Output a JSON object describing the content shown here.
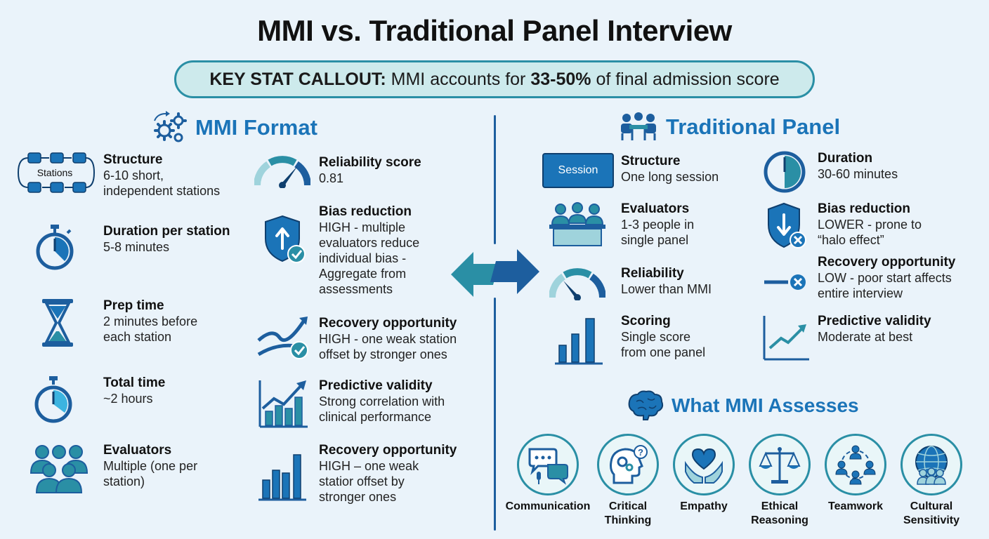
{
  "title": "MMI vs. Traditional Panel Interview",
  "callout": {
    "prefix": "KEY STAT CALLOUT:",
    "text1": " MMI accounts for ",
    "stat": "33-50%",
    "text2": " of final admission score"
  },
  "mmi": {
    "heading": "MMI Format",
    "stations_icon_label": "Stations",
    "left_items": [
      {
        "label": "Structure",
        "value": "6-10 short,\nindependent stations",
        "icon": "stations-flow-icon"
      },
      {
        "label": "Duration per station",
        "value": "5-8 minutes",
        "icon": "stopwatch-icon"
      },
      {
        "label": "Prep time",
        "value": "2 minutes before\neach station",
        "icon": "hourglass-icon"
      },
      {
        "label": "Total time",
        "value": "~2 hours",
        "icon": "stopwatch-icon"
      },
      {
        "label": "Evaluators",
        "value": "Multiple (one per\nstation)",
        "icon": "group-icon"
      }
    ],
    "right_items": [
      {
        "label": "Reliability score",
        "value": "0.81",
        "icon": "gauge-icon"
      },
      {
        "label": "Bias reduction",
        "value": "HIGH - multiple\nevaluators reduce\nindividual bias -\nAggregate from\nassessments",
        "icon": "shield-up-check-icon"
      },
      {
        "label": "Recovery opportunity",
        "value": "HIGH - one weak station\noffset by stronger ones",
        "icon": "recovery-curve-icon"
      },
      {
        "label": "Predictive validity",
        "value": "Strong correlation with\nclinical performance",
        "icon": "growth-chart-icon"
      },
      {
        "label": "Recovery opportunity",
        "value": "HIGH – one weak\nstatior offset by\nstronger ones",
        "icon": "bar-chart-icon"
      }
    ]
  },
  "panel": {
    "heading": "Traditional Panel",
    "session_label": "Session",
    "left_items": [
      {
        "label": "Structure",
        "value": "One long session",
        "icon": "session-box-icon"
      },
      {
        "label": "Evaluators",
        "value": "1-3 people in\nsingle panel",
        "icon": "panel-table-icon"
      },
      {
        "label": "Reliability",
        "value": "Lower than MMI",
        "icon": "gauge-icon"
      },
      {
        "label": "Scoring",
        "value": "Single score\nfrom one panel",
        "icon": "bar-chart-icon"
      }
    ],
    "right_items": [
      {
        "label": "Duration",
        "value": "30-60 minutes",
        "icon": "clock-icon"
      },
      {
        "label": "Bias reduction",
        "value": "LOWER - prone to\n“halo effect”",
        "icon": "shield-down-x-icon"
      },
      {
        "label": "Recovery opportunity",
        "value": "LOW - poor start affects\nentire interview",
        "icon": "line-x-icon"
      },
      {
        "label": "Predictive validity",
        "value": "Moderate at best",
        "icon": "line-chart-icon"
      }
    ]
  },
  "assesses": {
    "heading": "What MMI Assesses",
    "items": [
      {
        "label": "Communication",
        "icon": "speech-bubbles-icon"
      },
      {
        "label": "Critical\nThinking",
        "icon": "head-gears-icon"
      },
      {
        "label": "Empathy",
        "icon": "heart-hands-icon"
      },
      {
        "label": "Ethical\nReasoning",
        "icon": "scales-icon"
      },
      {
        "label": "Teamwork",
        "icon": "team-circle-icon"
      },
      {
        "label": "Cultural\nSensitivity",
        "icon": "globe-people-icon"
      }
    ]
  },
  "colors": {
    "dark_blue": "#1d5e9e",
    "accent_blue": "#1b74b8",
    "teal": "#2a8fa5",
    "light_teal": "#9fd3dc"
  }
}
